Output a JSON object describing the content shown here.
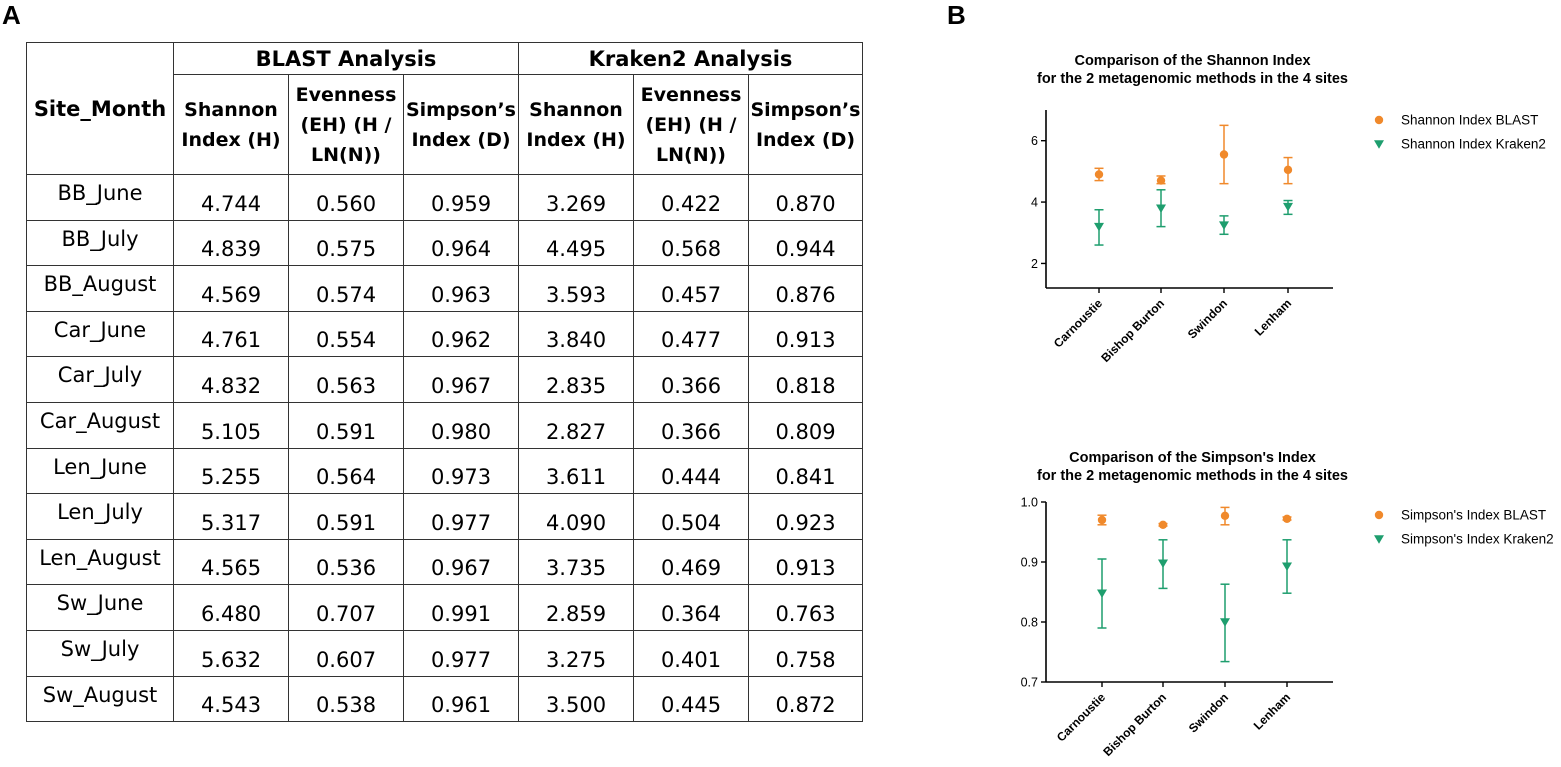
{
  "panels": {
    "a": "A",
    "b": "B"
  },
  "table": {
    "site_header": "Site_Month",
    "groups": [
      "BLAST Analysis",
      "Kraken2 Analysis"
    ],
    "columns": {
      "shannon": "Shannon Index (H)",
      "evenness": "Evenness (EH) (H / LN(N))",
      "simpson": "Simpson’s Index (D)"
    },
    "rows": [
      {
        "site": "BB_June",
        "blast": [
          "4.744",
          "0.560",
          "0.959"
        ],
        "kraken": [
          "3.269",
          "0.422",
          "0.870"
        ]
      },
      {
        "site": "BB_July",
        "blast": [
          "4.839",
          "0.575",
          "0.964"
        ],
        "kraken": [
          "4.495",
          "0.568",
          "0.944"
        ]
      },
      {
        "site": "BB_August",
        "blast": [
          "4.569",
          "0.574",
          "0.963"
        ],
        "kraken": [
          "3.593",
          "0.457",
          "0.876"
        ]
      },
      {
        "site": "Car_June",
        "blast": [
          "4.761",
          "0.554",
          "0.962"
        ],
        "kraken": [
          "3.840",
          "0.477",
          "0.913"
        ]
      },
      {
        "site": "Car_July",
        "blast": [
          "4.832",
          "0.563",
          "0.967"
        ],
        "kraken": [
          "2.835",
          "0.366",
          "0.818"
        ]
      },
      {
        "site": "Car_August",
        "blast": [
          "5.105",
          "0.591",
          "0.980"
        ],
        "kraken": [
          "2.827",
          "0.366",
          "0.809"
        ]
      },
      {
        "site": "Len_June",
        "blast": [
          "5.255",
          "0.564",
          "0.973"
        ],
        "kraken": [
          "3.611",
          "0.444",
          "0.841"
        ]
      },
      {
        "site": "Len_July",
        "blast": [
          "5.317",
          "0.591",
          "0.977"
        ],
        "kraken": [
          "4.090",
          "0.504",
          "0.923"
        ]
      },
      {
        "site": "Len_August",
        "blast": [
          "4.565",
          "0.536",
          "0.967"
        ],
        "kraken": [
          "3.735",
          "0.469",
          "0.913"
        ]
      },
      {
        "site": "Sw_June",
        "blast": [
          "6.480",
          "0.707",
          "0.991"
        ],
        "kraken": [
          "2.859",
          "0.364",
          "0.763"
        ]
      },
      {
        "site": "Sw_July",
        "blast": [
          "5.632",
          "0.607",
          "0.977"
        ],
        "kraken": [
          "3.275",
          "0.401",
          "0.758"
        ]
      },
      {
        "site": "Sw_August",
        "blast": [
          "4.543",
          "0.538",
          "0.961"
        ],
        "kraken": [
          "3.500",
          "0.445",
          "0.872"
        ]
      }
    ]
  },
  "chart_data": [
    {
      "type": "scatter",
      "title": "Comparison of the Shannon Index",
      "subtitle": "for the 2 metagenomic methods in the 4 sites",
      "xlabel": "",
      "ylabel": "",
      "categories": [
        "Carnoustie",
        "Bishop Burton",
        "Swindon",
        "Lenham"
      ],
      "ylim": [
        1.2,
        7
      ],
      "yticks": [
        2,
        4,
        6
      ],
      "tick_labels": [
        "2",
        "4",
        "6"
      ],
      "legend_position": "right",
      "series": [
        {
          "name": "Shannon Index BLAST",
          "color": "#F0892B",
          "marker": "circle",
          "values": [
            4.9,
            4.7,
            5.55,
            5.05
          ],
          "err_low": [
            4.7,
            4.6,
            4.6,
            4.6
          ],
          "err_high": [
            5.1,
            4.85,
            6.5,
            5.45
          ]
        },
        {
          "name": "Shannon Index Kraken2",
          "color": "#1E9E6E",
          "marker": "triangle-down",
          "values": [
            3.2,
            3.8,
            3.25,
            3.85
          ],
          "err_low": [
            2.6,
            3.2,
            2.95,
            3.6
          ],
          "err_high": [
            3.75,
            4.4,
            3.55,
            4.05
          ]
        }
      ]
    },
    {
      "type": "scatter",
      "title": "Comparison of the Simpson's Index",
      "subtitle": "for the 2 metagenomic methods in the 4 sites",
      "xlabel": "",
      "ylabel": "",
      "categories": [
        "Carnoustie",
        "Bishop Burton",
        "Swindon",
        "Lenham"
      ],
      "ylim": [
        0.7,
        1.0
      ],
      "yticks": [
        0.7,
        0.8,
        0.9,
        1.0
      ],
      "tick_labels": [
        "0.7",
        "0.8",
        "0.9",
        "1.0"
      ],
      "legend_position": "right",
      "series": [
        {
          "name": "Simpson's Index BLAST",
          "color": "#F0892B",
          "marker": "circle",
          "values": [
            0.97,
            0.962,
            0.977,
            0.972
          ],
          "err_low": [
            0.962,
            0.96,
            0.962,
            0.97
          ],
          "err_high": [
            0.978,
            0.964,
            0.991,
            0.975
          ]
        },
        {
          "name": "Simpson's Index Kraken2",
          "color": "#1E9E6E",
          "marker": "triangle-down",
          "values": [
            0.848,
            0.898,
            0.8,
            0.893
          ],
          "err_low": [
            0.79,
            0.856,
            0.734,
            0.848
          ],
          "err_high": [
            0.905,
            0.937,
            0.863,
            0.937
          ]
        }
      ]
    }
  ]
}
